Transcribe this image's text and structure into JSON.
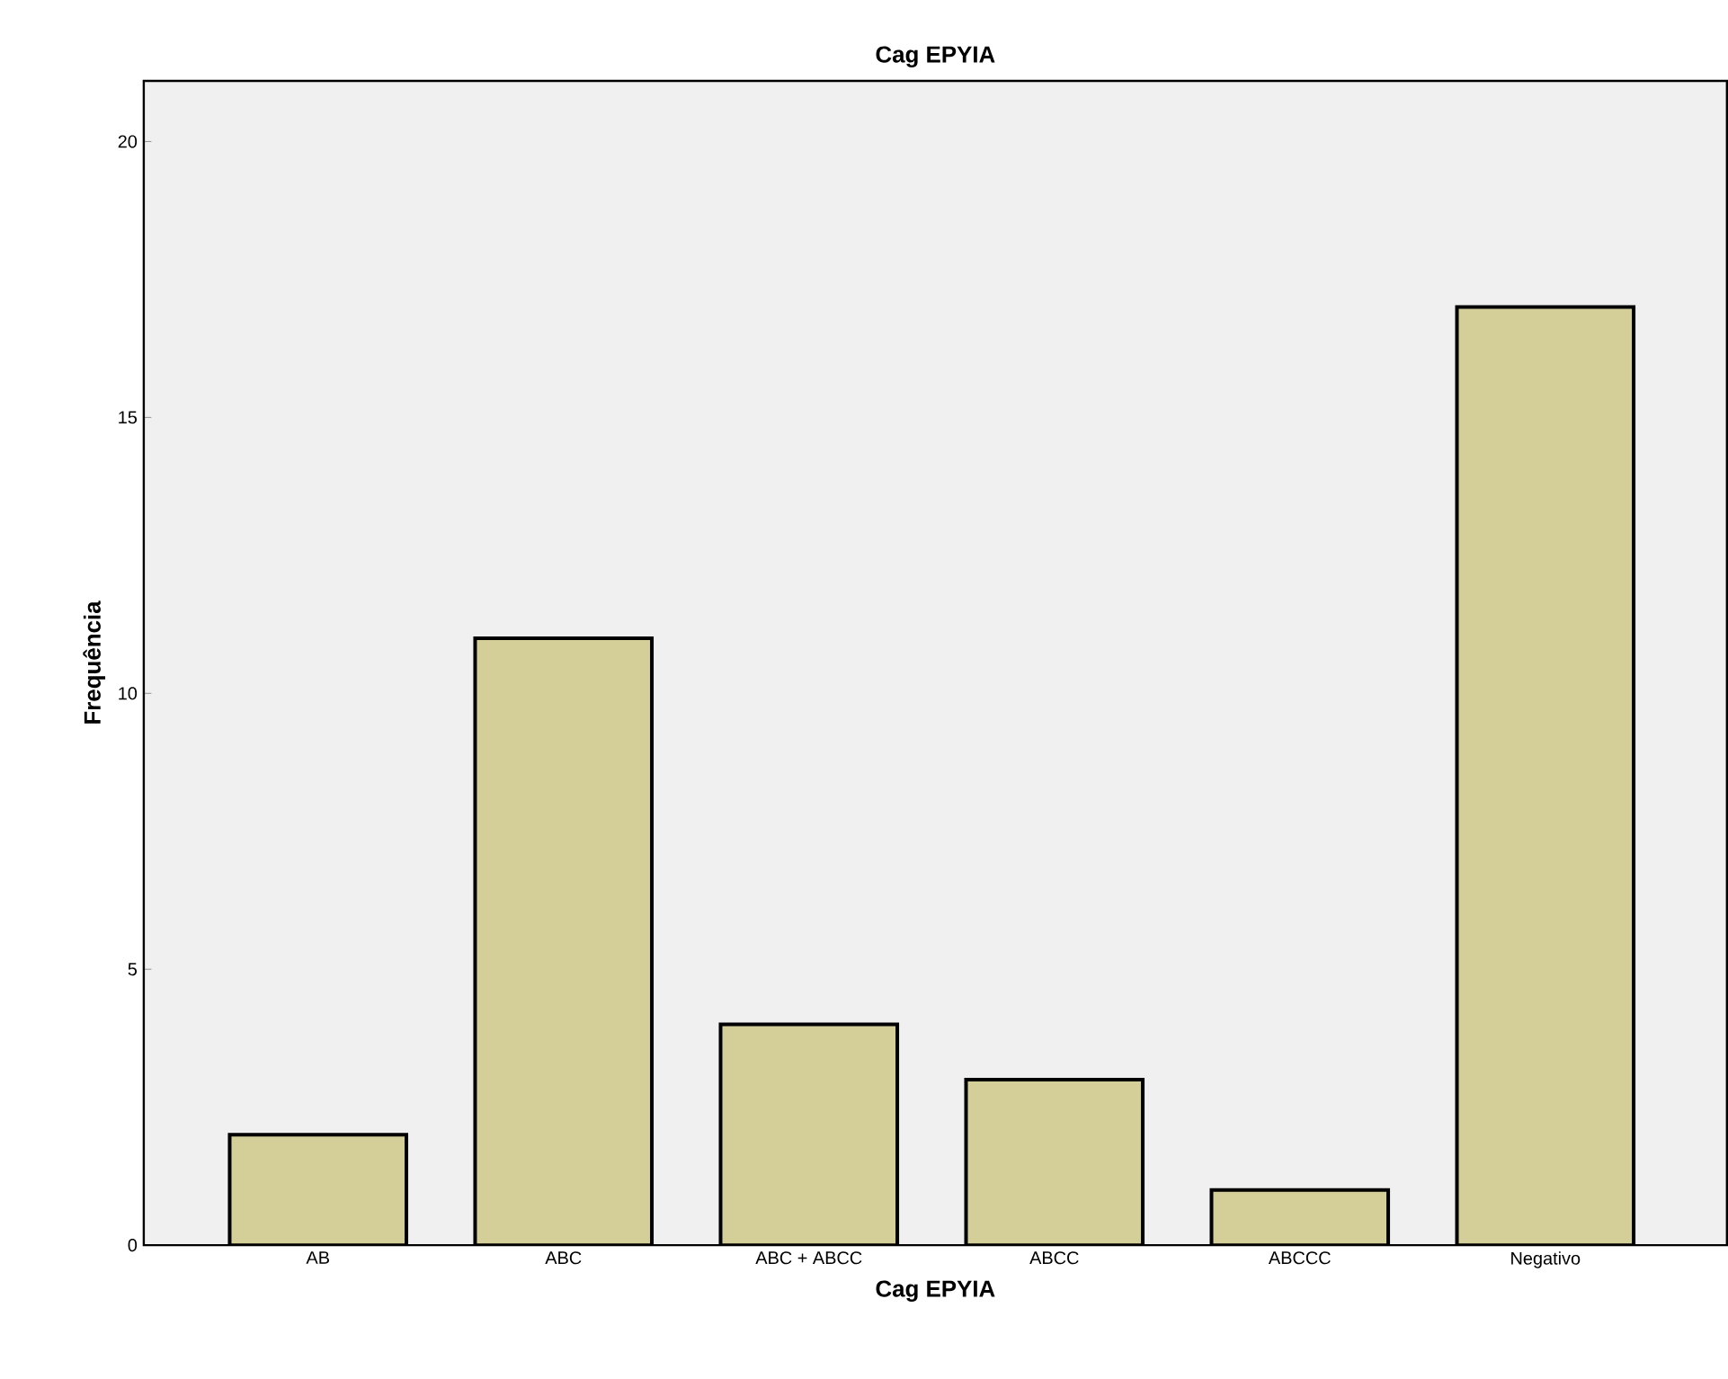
{
  "chart_data": {
    "type": "bar",
    "title": "Cag EPYIA",
    "xlabel": "Cag EPYIA",
    "ylabel": "Frequência",
    "categories": [
      "AB",
      "ABC",
      "ABC + ABCC",
      "ABCC",
      "ABCCC",
      "Negativo"
    ],
    "values": [
      2,
      11,
      4,
      3,
      1,
      17
    ],
    "color": "#d4cf98",
    "ylim": [
      0,
      21.1
    ],
    "yticks": [
      0,
      5,
      10,
      15,
      20
    ],
    "grid": false
  }
}
